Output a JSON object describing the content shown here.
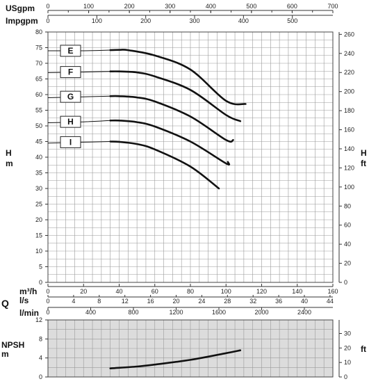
{
  "chart_data": [
    {
      "type": "line",
      "title": "",
      "ylabel": "H m",
      "ylabel_right": "H ft",
      "ylim": [
        0,
        80
      ],
      "y_ticks": [
        0,
        5,
        10,
        15,
        20,
        25,
        30,
        35,
        40,
        45,
        50,
        55,
        60,
        65,
        70,
        75,
        80
      ],
      "y_ticks_right": [
        0,
        20,
        40,
        60,
        80,
        100,
        120,
        140,
        160,
        180,
        200,
        220,
        240,
        260
      ],
      "xlim": [
        0,
        160
      ],
      "series": [
        {
          "name": "E",
          "x": [
            0,
            20,
            35,
            40,
            45,
            60,
            80,
            100,
            111
          ],
          "y": [
            74,
            74,
            74.2,
            74.3,
            74.2,
            72.5,
            68,
            58,
            57
          ]
        },
        {
          "name": "F",
          "x": [
            0,
            20,
            35,
            40,
            50,
            60,
            80,
            100,
            108
          ],
          "y": [
            67,
            67.2,
            67.4,
            67.4,
            67.1,
            65.8,
            61.5,
            53.5,
            51.5
          ]
        },
        {
          "name": "G",
          "x": [
            0,
            20,
            35,
            40,
            50,
            60,
            80,
            100,
            104
          ],
          "y": [
            59,
            59.3,
            59.5,
            59.5,
            59.1,
            57.8,
            53,
            45.5,
            45.5
          ]
        },
        {
          "name": "H",
          "x": [
            0,
            20,
            35,
            40,
            50,
            60,
            80,
            100,
            101
          ],
          "y": [
            51,
            51.3,
            51.7,
            51.7,
            51.2,
            49.8,
            45,
            38,
            38.5
          ]
        },
        {
          "name": "I",
          "x": [
            0,
            20,
            35,
            40,
            50,
            60,
            80,
            96
          ],
          "y": [
            44.5,
            44.8,
            45,
            44.9,
            44.2,
            42.5,
            37,
            30
          ]
        }
      ]
    },
    {
      "type": "line",
      "title": "",
      "ylabel": "NPSH m",
      "ylabel_right": "ft",
      "ylim": [
        0,
        12
      ],
      "y_ticks": [
        0,
        4,
        8,
        12
      ],
      "y_ticks_right": [
        0,
        10,
        20,
        30
      ],
      "xlim": [
        0,
        160
      ],
      "series": [
        {
          "name": "",
          "x": [
            35,
            50,
            60,
            80,
            100,
            108
          ],
          "y": [
            1.8,
            2.2,
            2.6,
            3.6,
            5,
            5.6
          ]
        }
      ]
    }
  ],
  "axes": {
    "usgpm": {
      "label": "USgpm",
      "ticks": [
        "0",
        "100",
        "200",
        "300",
        "400",
        "500",
        "600",
        "700"
      ]
    },
    "impgpm": {
      "label": "Impgpm",
      "ticks": [
        "0",
        "100",
        "200",
        "300",
        "400",
        "500"
      ]
    },
    "m3h": {
      "label": "m³/h",
      "ticks": [
        "0",
        "20",
        "40",
        "60",
        "80",
        "100",
        "120",
        "140",
        "160"
      ]
    },
    "ls": {
      "label": "l/s",
      "ticks": [
        "0",
        "4",
        "8",
        "12",
        "16",
        "20",
        "24",
        "28",
        "32",
        "36",
        "40",
        "44"
      ]
    },
    "lmin": {
      "label": "l/min",
      "ticks": [
        "0",
        "400",
        "800",
        "1200",
        "1600",
        "2000",
        "2400"
      ]
    },
    "q_label": "Q",
    "h_left": "H",
    "h_left_unit": "m",
    "h_right": "H",
    "h_right_unit": "ft",
    "npsh_left": "NPSH",
    "npsh_left_unit": "m",
    "npsh_right_unit": "ft"
  },
  "colors": {
    "npsh_panel": "#dcdcdc",
    "grid": "#9a9a9a",
    "curve": "#111111"
  }
}
